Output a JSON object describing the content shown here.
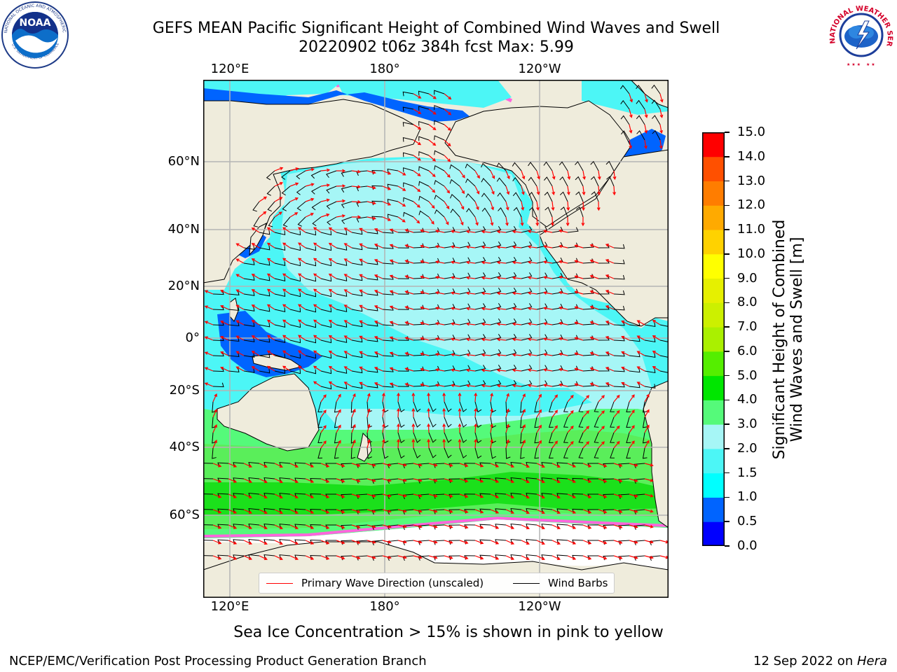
{
  "header": {
    "title_line1": "GEFS MEAN Pacific Significant Height of Combined Wind Waves and Swell",
    "title_line2": "20220902 t06z 384h fcst   Max: 5.99"
  },
  "logos": {
    "noaa_text": "NOAA",
    "noaa_ring": "NATIONAL OCEANIC AND ATMOSPHERIC ADMINISTRATION",
    "noaa_ring_bottom": "U.S. DEPARTMENT OF COMMERCE",
    "nws_ring": "NATIONAL WEATHER SERVICE"
  },
  "map": {
    "lon_labels": [
      "120°E",
      "180°",
      "120°W"
    ],
    "lat_labels": [
      "60°N",
      "40°N",
      "20°N",
      "0°",
      "20°S",
      "40°S",
      "60°S"
    ],
    "colors": {
      "land": "#efecdc",
      "ocean_low": "#4cf6f6",
      "ocean_mid": "#a6f6f6",
      "ocean_high": "#5aee5a",
      "ocean_peak": "#1be01b",
      "ice": "#ffffff",
      "barb": "#000000",
      "arrow": "#ff0000"
    }
  },
  "legend": {
    "wave_direction": "Primary Wave Direction (unscaled)",
    "wind_barbs": "Wind Barbs"
  },
  "colorbar": {
    "label_line1": "Significant Height of Combined",
    "label_line2": "Wind Waves and Swell [m]",
    "ticks": [
      "0.0",
      "0.5",
      "1.0",
      "1.5",
      "2.0",
      "3.0",
      "4.0",
      "5.0",
      "6.0",
      "7.0",
      "8.0",
      "9.0",
      "10.0",
      "11.0",
      "12.0",
      "13.0",
      "14.0",
      "15.0"
    ],
    "colors": [
      "#0000ff",
      "#0064ff",
      "#00ffff",
      "#4cf6f6",
      "#a6f6f6",
      "#55fa7a",
      "#00e600",
      "#55ee00",
      "#aaf000",
      "#ccf000",
      "#e6f000",
      "#ffff00",
      "#ffd200",
      "#ffaa00",
      "#ff7d00",
      "#ff5000",
      "#ff0000"
    ]
  },
  "footer": {
    "ice_note": "Sea Ice Concentration > 15% is shown in pink to yellow",
    "credit": "NCEP/EMC/Verification Post Processing Product Generation Branch",
    "date": "12 Sep 2022 on ",
    "host": "Hera"
  }
}
